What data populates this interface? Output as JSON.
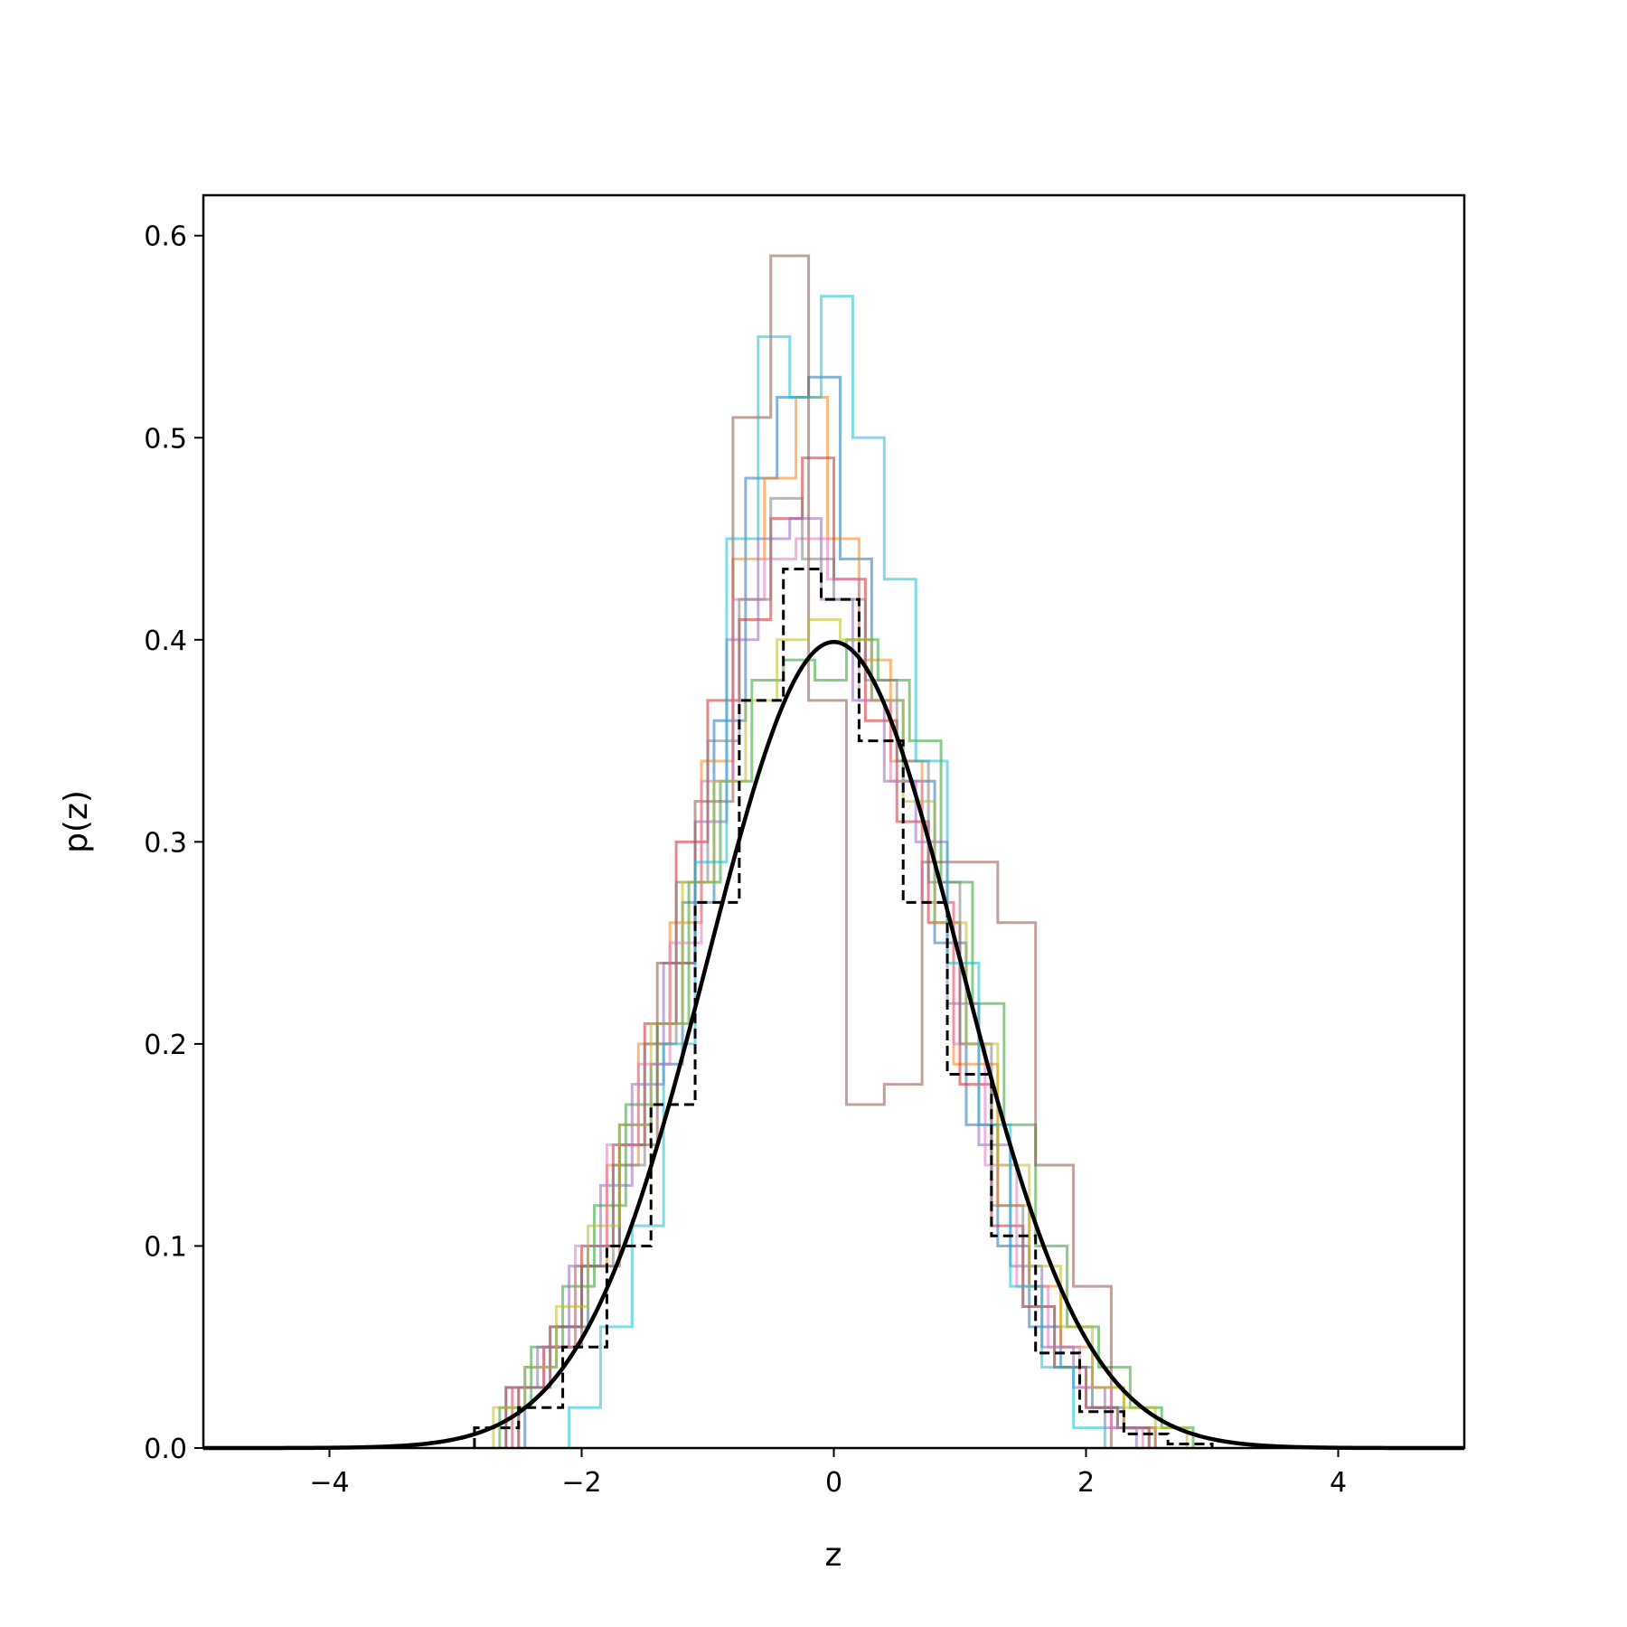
{
  "chart_data": {
    "type": "histogram",
    "xlabel": "z",
    "ylabel": "p(z)",
    "xlim": [
      -5,
      5
    ],
    "ylim": [
      0,
      0.62
    ],
    "grid": false,
    "legend": "none",
    "xticks": [
      -4,
      -2,
      0,
      2,
      4
    ],
    "yticks": [
      0.0,
      0.1,
      0.2,
      0.3,
      0.4,
      0.5,
      0.6
    ],
    "xtick_labels": [
      "−4",
      "−2",
      "0",
      "2",
      "4"
    ],
    "ytick_labels": [
      "0.0",
      "0.1",
      "0.2",
      "0.3",
      "0.4",
      "0.5",
      "0.6"
    ],
    "series": [
      {
        "color": "#1f77b4",
        "bin_edges": [
          -2.45,
          -2.2,
          -1.95,
          -1.7,
          -1.45,
          -1.2,
          -0.95,
          -0.7,
          -0.45,
          -0.2,
          0.05,
          0.3,
          0.55,
          0.8,
          1.05,
          1.3,
          1.55,
          1.8,
          2.05,
          2.3,
          2.55
        ],
        "density": [
          0.04,
          0.06,
          0.1,
          0.16,
          0.19,
          0.27,
          0.36,
          0.48,
          0.52,
          0.53,
          0.44,
          0.37,
          0.33,
          0.25,
          0.16,
          0.1,
          0.06,
          0.04,
          0.02,
          0.01
        ]
      },
      {
        "color": "#ff7f0e",
        "bin_edges": [
          -2.55,
          -2.3,
          -2.05,
          -1.8,
          -1.55,
          -1.3,
          -1.05,
          -0.8,
          -0.55,
          -0.3,
          -0.05,
          0.2,
          0.45,
          0.7,
          0.95,
          1.3,
          1.55,
          1.8,
          2.05,
          2.3,
          2.55
        ],
        "density": [
          0.03,
          0.05,
          0.09,
          0.14,
          0.2,
          0.26,
          0.34,
          0.44,
          0.48,
          0.52,
          0.45,
          0.39,
          0.34,
          0.27,
          0.19,
          0.12,
          0.08,
          0.05,
          0.03,
          0.01
        ]
      },
      {
        "color": "#2ca02c",
        "bin_edges": [
          -2.65,
          -2.4,
          -2.15,
          -1.9,
          -1.65,
          -1.4,
          -1.15,
          -0.9,
          -0.65,
          -0.4,
          -0.15,
          0.1,
          0.35,
          0.6,
          0.85,
          1.1,
          1.35,
          1.6,
          1.85,
          2.1,
          2.35,
          2.6,
          2.85
        ],
        "density": [
          0.02,
          0.05,
          0.08,
          0.12,
          0.17,
          0.21,
          0.28,
          0.33,
          0.38,
          0.39,
          0.38,
          0.4,
          0.38,
          0.35,
          0.28,
          0.22,
          0.16,
          0.1,
          0.06,
          0.04,
          0.02,
          0.01
        ]
      },
      {
        "color": "#d62728",
        "bin_edges": [
          -2.5,
          -2.25,
          -2.0,
          -1.75,
          -1.5,
          -1.25,
          -1.0,
          -0.75,
          -0.5,
          -0.25,
          0.0,
          0.25,
          0.5,
          0.75,
          1.0,
          1.25,
          1.5,
          1.75,
          2.0,
          2.25,
          2.5
        ],
        "density": [
          0.03,
          0.06,
          0.1,
          0.15,
          0.21,
          0.3,
          0.37,
          0.41,
          0.46,
          0.49,
          0.43,
          0.36,
          0.31,
          0.26,
          0.18,
          0.11,
          0.07,
          0.04,
          0.02,
          0.01
        ]
      },
      {
        "color": "#9467bd",
        "bin_edges": [
          -2.6,
          -2.35,
          -2.1,
          -1.85,
          -1.6,
          -1.35,
          -1.1,
          -0.85,
          -0.6,
          -0.35,
          -0.1,
          0.15,
          0.4,
          0.65,
          0.9,
          1.15,
          1.4,
          1.65,
          1.9,
          2.15,
          2.4
        ],
        "density": [
          0.03,
          0.05,
          0.09,
          0.13,
          0.18,
          0.24,
          0.31,
          0.4,
          0.45,
          0.46,
          0.42,
          0.37,
          0.33,
          0.3,
          0.22,
          0.15,
          0.09,
          0.05,
          0.03,
          0.01
        ]
      },
      {
        "color": "#8c564b",
        "bin_edges": [
          -2.6,
          -2.3,
          -2.0,
          -1.7,
          -1.4,
          -1.1,
          -0.8,
          -0.5,
          -0.2,
          0.1,
          0.4,
          0.7,
          1.0,
          1.3,
          1.6,
          1.9,
          2.2
        ],
        "density": [
          0.03,
          0.05,
          0.09,
          0.15,
          0.24,
          0.32,
          0.51,
          0.59,
          0.37,
          0.17,
          0.18,
          0.29,
          0.29,
          0.26,
          0.14,
          0.08
        ]
      },
      {
        "color": "#e377c2",
        "bin_edges": [
          -2.55,
          -2.3,
          -2.05,
          -1.8,
          -1.55,
          -1.3,
          -1.05,
          -0.8,
          -0.55,
          -0.3,
          -0.05,
          0.2,
          0.45,
          0.7,
          0.95,
          1.2,
          1.45,
          1.7,
          1.95,
          2.2,
          2.45
        ],
        "density": [
          0.03,
          0.05,
          0.1,
          0.15,
          0.19,
          0.25,
          0.33,
          0.42,
          0.44,
          0.45,
          0.43,
          0.37,
          0.33,
          0.27,
          0.2,
          0.14,
          0.08,
          0.05,
          0.03,
          0.01
        ]
      },
      {
        "color": "#7f7f7f",
        "bin_edges": [
          -2.5,
          -2.25,
          -2.0,
          -1.75,
          -1.5,
          -1.25,
          -1.0,
          -0.75,
          -0.5,
          -0.25,
          0.0,
          0.25,
          0.5,
          0.75,
          1.0,
          1.25,
          1.5,
          1.75,
          2.0,
          2.25,
          2.5
        ],
        "density": [
          0.03,
          0.06,
          0.09,
          0.14,
          0.2,
          0.28,
          0.35,
          0.42,
          0.47,
          0.44,
          0.42,
          0.38,
          0.34,
          0.28,
          0.2,
          0.12,
          0.07,
          0.04,
          0.02,
          0.01
        ]
      },
      {
        "color": "#bcbd22",
        "bin_edges": [
          -2.7,
          -2.45,
          -2.2,
          -1.95,
          -1.7,
          -1.45,
          -1.2,
          -0.95,
          -0.7,
          -0.45,
          -0.2,
          0.05,
          0.3,
          0.55,
          0.8,
          1.05,
          1.3,
          1.55,
          1.8,
          2.05,
          2.3,
          2.55,
          2.8
        ],
        "density": [
          0.02,
          0.04,
          0.07,
          0.11,
          0.16,
          0.21,
          0.28,
          0.33,
          0.37,
          0.4,
          0.41,
          0.4,
          0.37,
          0.32,
          0.26,
          0.2,
          0.14,
          0.09,
          0.06,
          0.03,
          0.02,
          0.01
        ]
      },
      {
        "color": "#17becf",
        "bin_edges": [
          -2.1,
          -1.85,
          -1.6,
          -1.35,
          -1.1,
          -0.85,
          -0.6,
          -0.35,
          -0.1,
          0.15,
          0.4,
          0.65,
          0.9,
          1.15,
          1.4,
          1.65,
          1.9,
          2.15
        ],
        "density": [
          0.02,
          0.06,
          0.11,
          0.2,
          0.29,
          0.45,
          0.55,
          0.52,
          0.57,
          0.5,
          0.43,
          0.34,
          0.24,
          0.16,
          0.08,
          0.04,
          0.01
        ]
      },
      {
        "color": "#000000",
        "style": "dashed",
        "bin_edges": [
          -2.85,
          -2.5,
          -2.15,
          -1.8,
          -1.45,
          -1.1,
          -0.75,
          -0.4,
          -0.1,
          0.2,
          0.55,
          0.9,
          1.25,
          1.6,
          1.95,
          2.3,
          2.65,
          3.0
        ],
        "density": [
          0.01,
          0.02,
          0.05,
          0.1,
          0.17,
          0.27,
          0.37,
          0.435,
          0.42,
          0.35,
          0.27,
          0.185,
          0.105,
          0.047,
          0.018,
          0.007,
          0.002
        ]
      },
      {
        "color": "#000000",
        "kind": "line",
        "function": "standard-normal-pdf",
        "mean": 0,
        "std": 1
      }
    ]
  }
}
